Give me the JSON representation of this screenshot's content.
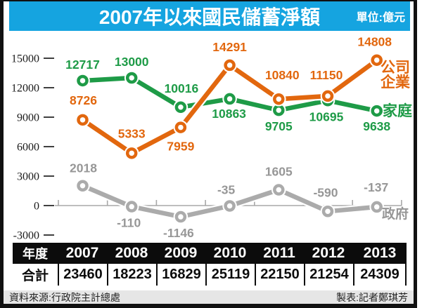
{
  "header": {
    "title": "2007年以來國民儲蓄淨額",
    "unit": "單位:億元",
    "bg_color": "#15a4e0"
  },
  "chart_data": {
    "type": "line",
    "title": "2007年以來國民儲蓄淨額",
    "unit": "億元",
    "categories": [
      2007,
      2008,
      2009,
      2010,
      2011,
      2012,
      2013
    ],
    "axis_ticks": [
      15000,
      12000,
      9000,
      6000,
      3000,
      0,
      -3000
    ],
    "ylim": [
      -3000,
      15000
    ],
    "grid": false,
    "legend_position": "right",
    "series": [
      {
        "name": "公司企業",
        "color": "#e2670e",
        "values": [
          8726,
          5333,
          7959,
          14291,
          10840,
          11150,
          14808
        ],
        "label_offsets": [
          [
            1,
            -28
          ],
          [
            0,
            -28
          ],
          [
            0,
            27
          ],
          [
            0,
            -26
          ],
          [
            5,
            -34
          ],
          [
            -2,
            -30
          ],
          [
            -3,
            -26
          ]
        ]
      },
      {
        "name": "家庭",
        "color": "#1e9b47",
        "values": [
          12717,
          13000,
          10016,
          10863,
          9705,
          10695,
          9638
        ],
        "label_offsets": [
          [
            0,
            -23
          ],
          [
            0,
            -23
          ],
          [
            1,
            -27
          ],
          [
            -1,
            21
          ],
          [
            0,
            23
          ],
          [
            -2,
            23
          ],
          [
            0,
            22
          ]
        ]
      },
      {
        "name": "政府",
        "color": "#ababab",
        "label_color": "#979797",
        "values": [
          2018,
          -110,
          -1146,
          -35,
          1605,
          -590,
          -137
        ],
        "label_offsets": [
          [
            1,
            -25
          ],
          [
            -4,
            23
          ],
          [
            -3,
            23
          ],
          [
            -5,
            -23
          ],
          [
            0,
            -26
          ],
          [
            -3,
            -27
          ],
          [
            -1,
            -28
          ]
        ]
      }
    ]
  },
  "table": {
    "header_row": [
      "年度",
      "2007",
      "2008",
      "2009",
      "2010",
      "2011",
      "2012",
      "2013"
    ],
    "total_row": [
      "合計",
      "23460",
      "18223",
      "16829",
      "25119",
      "22150",
      "21254",
      "24309"
    ]
  },
  "footer": {
    "source": "資料來源:行政院主計總處",
    "credit": "製表:記者鄭琪芳"
  }
}
